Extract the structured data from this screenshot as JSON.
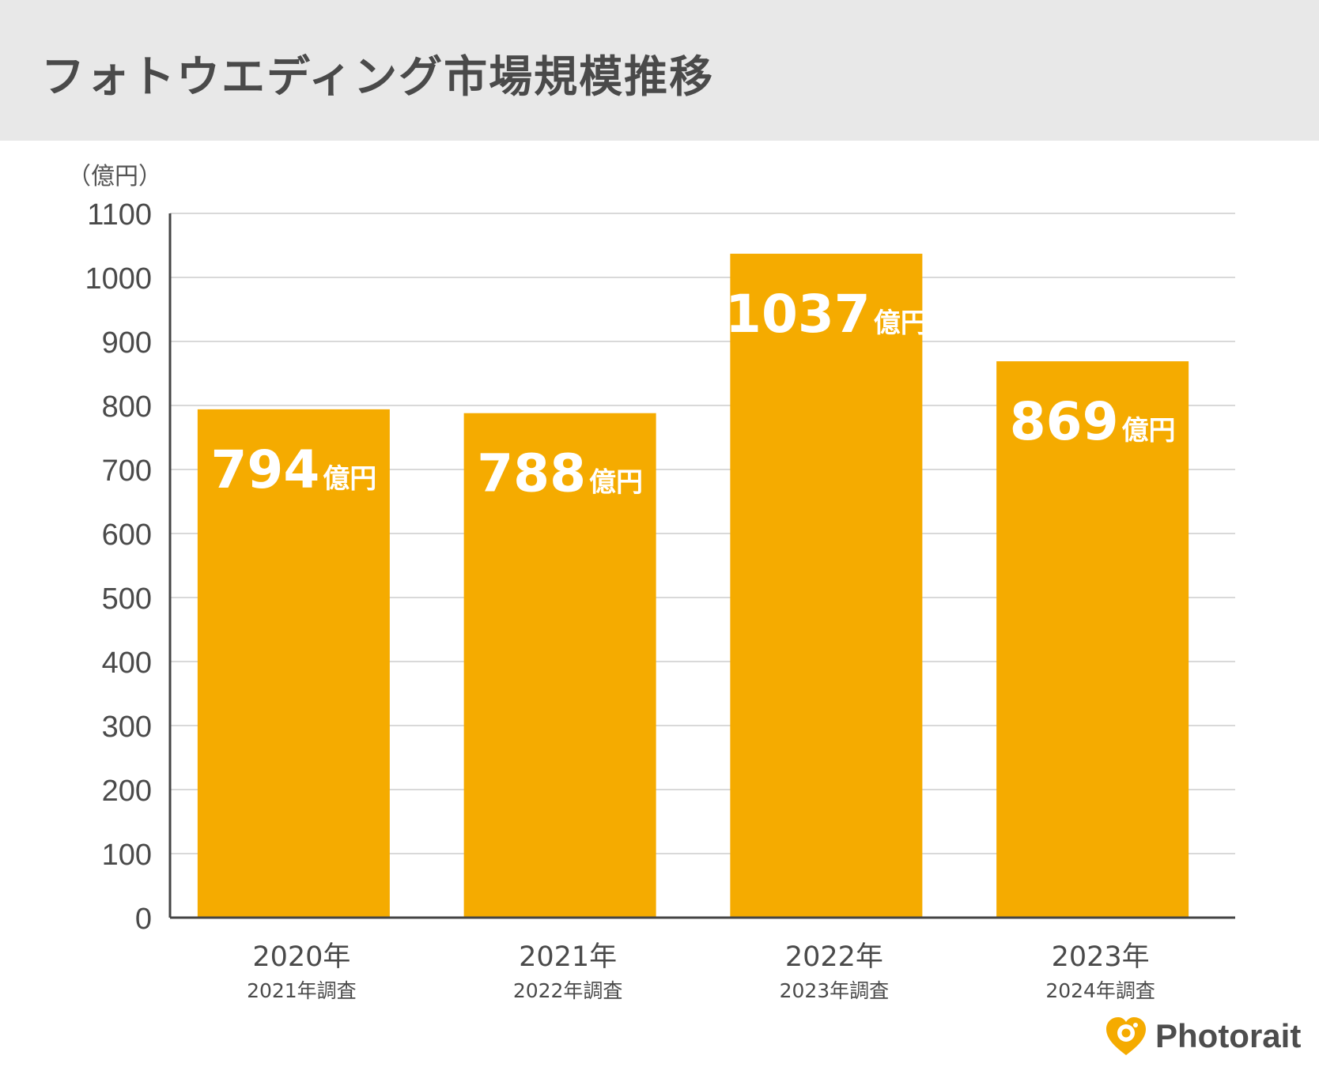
{
  "title": "フォトウエディング市場規模推移",
  "chart_data": {
    "type": "bar",
    "title": "フォトウエディング市場規模推移",
    "ylabel": "（億円）",
    "xlabel": "",
    "ylim": [
      0,
      1100
    ],
    "y_ticks": [
      0,
      100,
      200,
      300,
      400,
      500,
      600,
      700,
      800,
      900,
      1000,
      1100
    ],
    "grid": true,
    "categories": [
      "2020年",
      "2021年",
      "2022年",
      "2023年"
    ],
    "subcategories": [
      "2021年調査",
      "2022年調査",
      "2023年調査",
      "2024年調査"
    ],
    "values": [
      794,
      788,
      1037,
      869
    ],
    "value_unit": "億円",
    "bar_color": "#f5ab00"
  },
  "logo": {
    "name": "heart-camera-icon",
    "text": "Photorait",
    "color": "#f5ab00"
  }
}
